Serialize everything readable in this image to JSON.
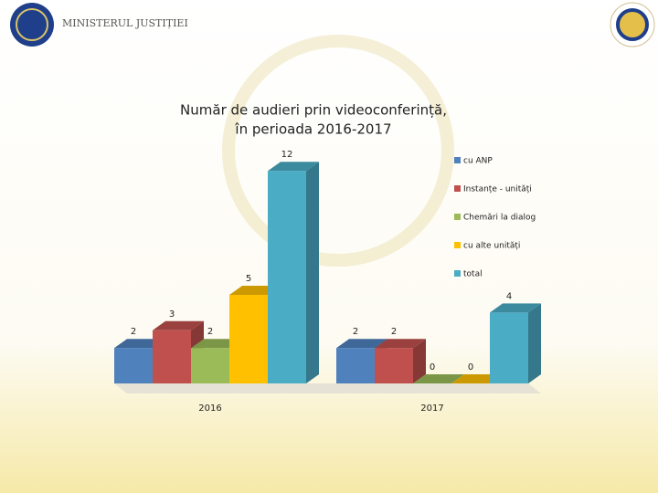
{
  "header": {
    "ministry": "MINISTERUL JUSTIȚIEI"
  },
  "chart_data": {
    "type": "bar3d",
    "title": [
      "Număr de audieri prin videoconferință,",
      "în perioada 2016-2017"
    ],
    "categories": [
      "2016",
      "2017"
    ],
    "series": [
      {
        "name": "cu ANP",
        "color": "#4f81bd",
        "values": [
          2,
          2
        ]
      },
      {
        "name": "Instanțe - unități",
        "color": "#c0504d",
        "values": [
          3,
          2
        ]
      },
      {
        "name": "Chemări la dialog",
        "color": "#9bbb59",
        "values": [
          2,
          0
        ]
      },
      {
        "name": "cu alte unități",
        "color": "#ffc000",
        "values": [
          5,
          0
        ]
      },
      {
        "name": "total",
        "color": "#4bacc6",
        "values": [
          12,
          4
        ]
      }
    ],
    "legend": "right"
  }
}
